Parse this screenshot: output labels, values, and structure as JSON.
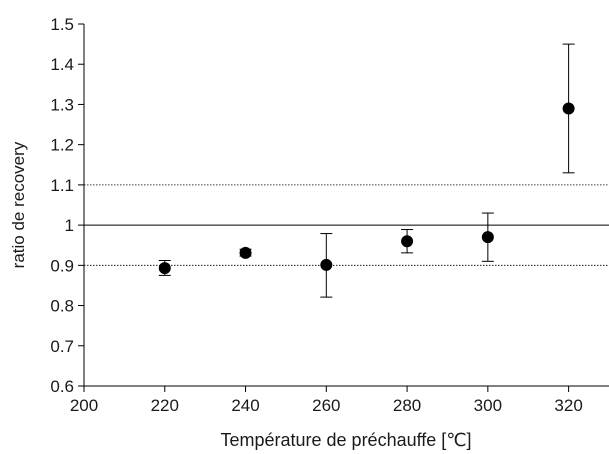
{
  "chart_data": {
    "type": "scatter",
    "title": "",
    "xlabel": "Température de préchauffe [℃]",
    "ylabel": "ratio de recovery",
    "xlim": [
      200,
      330
    ],
    "ylim": [
      0.6,
      1.5
    ],
    "x_ticks": [
      200,
      220,
      240,
      260,
      280,
      300,
      320
    ],
    "y_ticks": [
      0.6,
      0.7,
      0.8,
      0.9,
      1,
      1.1,
      1.2,
      1.3,
      1.4,
      1.5
    ],
    "grid": false,
    "reference_lines": [
      {
        "y": 1.1,
        "style": "dotted"
      },
      {
        "y": 1.0,
        "style": "solid"
      },
      {
        "y": 0.9,
        "style": "dotted"
      }
    ],
    "series": [
      {
        "marker": "filled-circle",
        "color": "#000000",
        "points": [
          {
            "x": 220,
            "y": 0.893,
            "err_low": 0.875,
            "err_high": 0.912
          },
          {
            "x": 240,
            "y": 0.931,
            "err_low": 0.923,
            "err_high": 0.94
          },
          {
            "x": 260,
            "y": 0.901,
            "err_low": 0.821,
            "err_high": 0.979
          },
          {
            "x": 280,
            "y": 0.96,
            "err_low": 0.931,
            "err_high": 0.989
          },
          {
            "x": 300,
            "y": 0.97,
            "err_low": 0.91,
            "err_high": 1.03
          },
          {
            "x": 320,
            "y": 1.29,
            "err_low": 1.13,
            "err_high": 1.45
          }
        ]
      }
    ]
  }
}
